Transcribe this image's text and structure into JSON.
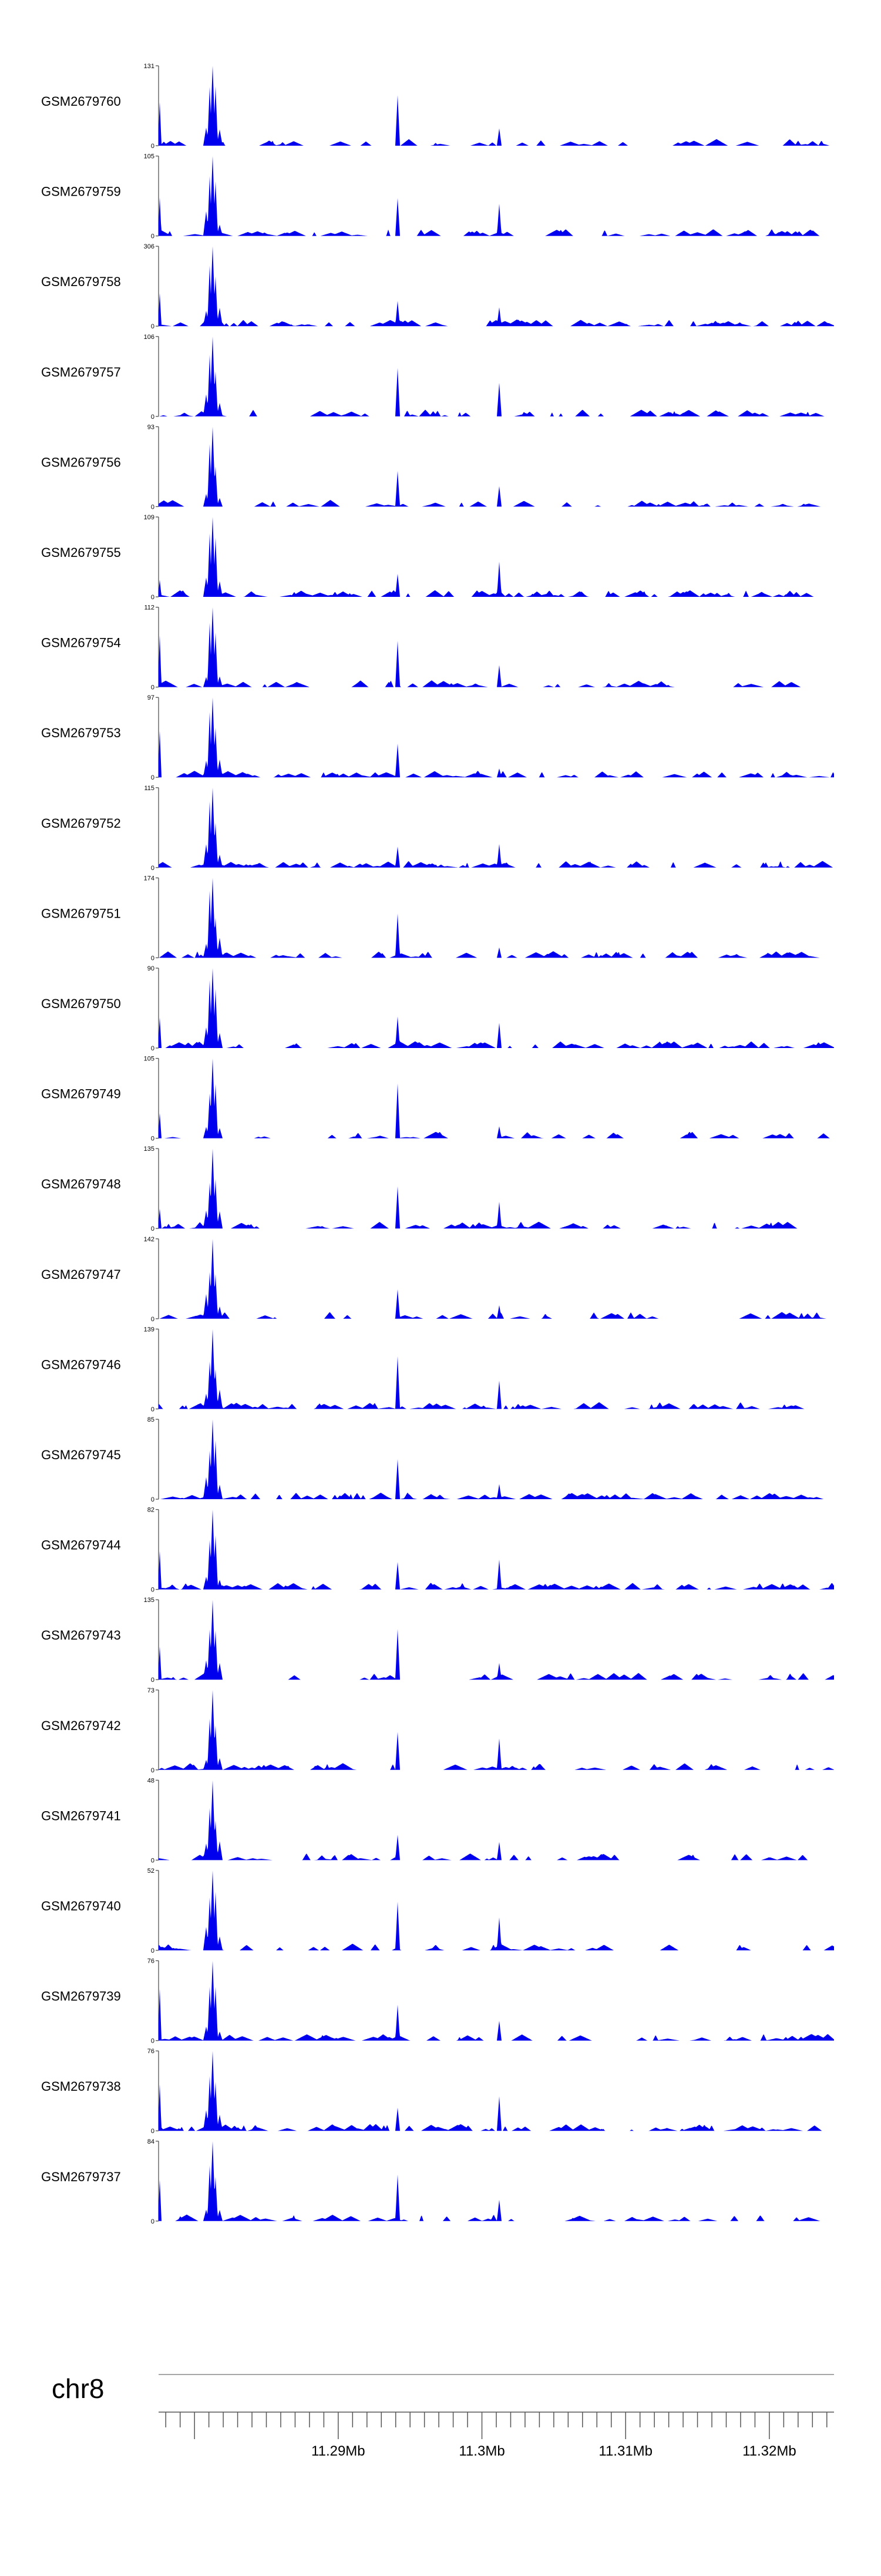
{
  "chart_data": {
    "type": "area",
    "color": "#0000ee",
    "axis_color": "#555555",
    "chromosome": "chr8",
    "x_ticks": [
      "11.29Mb",
      "11.3Mb",
      "11.31Mb",
      "11.32Mb"
    ],
    "tracks": [
      {
        "name": "GSM2679760",
        "max": 131,
        "min": 0
      },
      {
        "name": "GSM2679759",
        "max": 105,
        "min": 0
      },
      {
        "name": "GSM2679758",
        "max": 306,
        "min": 0
      },
      {
        "name": "GSM2679757",
        "max": 106,
        "min": 0
      },
      {
        "name": "GSM2679756",
        "max": 93,
        "min": 0
      },
      {
        "name": "GSM2679755",
        "max": 109,
        "min": 0
      },
      {
        "name": "GSM2679754",
        "max": 112,
        "min": 0
      },
      {
        "name": "GSM2679753",
        "max": 97,
        "min": 0
      },
      {
        "name": "GSM2679752",
        "max": 115,
        "min": 0
      },
      {
        "name": "GSM2679751",
        "max": 174,
        "min": 0
      },
      {
        "name": "GSM2679750",
        "max": 90,
        "min": 0
      },
      {
        "name": "GSM2679749",
        "max": 105,
        "min": 0
      },
      {
        "name": "GSM2679748",
        "max": 135,
        "min": 0
      },
      {
        "name": "GSM2679747",
        "max": 142,
        "min": 0
      },
      {
        "name": "GSM2679746",
        "max": 139,
        "min": 0
      },
      {
        "name": "GSM2679745",
        "max": 85,
        "min": 0
      },
      {
        "name": "GSM2679744",
        "max": 82,
        "min": 0
      },
      {
        "name": "GSM2679743",
        "max": 135,
        "min": 0
      },
      {
        "name": "GSM2679742",
        "max": 73,
        "min": 0
      },
      {
        "name": "GSM2679741",
        "max": 48,
        "min": 0
      },
      {
        "name": "GSM2679740",
        "max": 52,
        "min": 0
      },
      {
        "name": "GSM2679739",
        "max": 76,
        "min": 0
      },
      {
        "name": "GSM2679738",
        "max": 76,
        "min": 0
      },
      {
        "name": "GSM2679737",
        "max": 84,
        "min": 0
      }
    ]
  }
}
